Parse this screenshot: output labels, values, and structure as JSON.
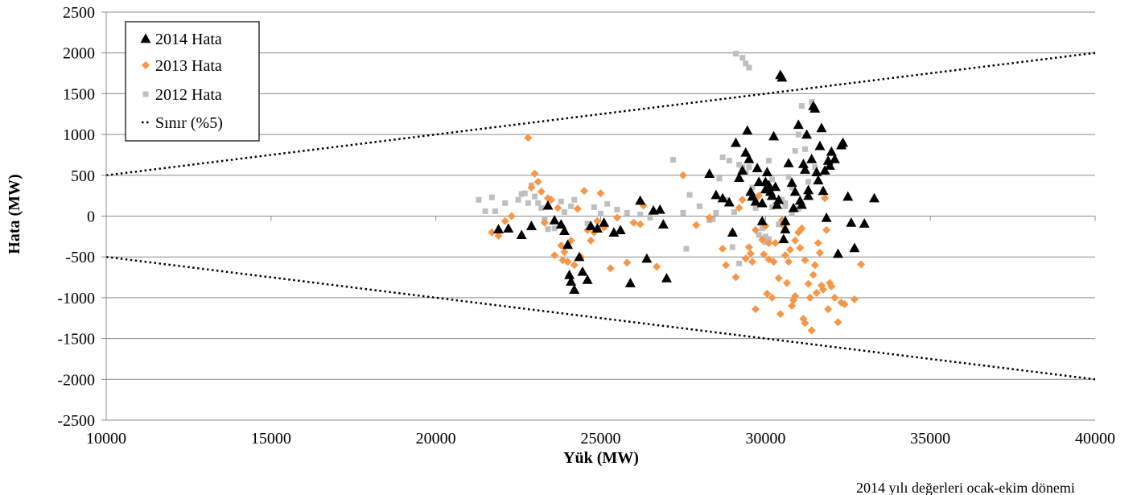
{
  "chart_data": {
    "type": "scatter",
    "title": "",
    "xlabel": "Yük (MW)",
    "ylabel": "Hata (MW)",
    "xlim": [
      10000,
      40000
    ],
    "ylim": [
      -2500,
      2500
    ],
    "x_ticks": [
      10000,
      15000,
      20000,
      25000,
      30000,
      35000,
      40000
    ],
    "y_ticks": [
      2500,
      2000,
      1500,
      1000,
      500,
      0,
      -500,
      -1000,
      -1500,
      -2000,
      -2500
    ],
    "grid": "horizontal",
    "legend_position": "top-left",
    "footnote": "2014 yılı değerleri ocak-ekim dönemi",
    "series": [
      {
        "name": "2014 Hata",
        "marker": "triangle",
        "color": "#000000",
        "points": [
          [
            21900,
            -160
          ],
          [
            22200,
            -150
          ],
          [
            22600,
            -230
          ],
          [
            22900,
            -120
          ],
          [
            23400,
            130
          ],
          [
            23600,
            -50
          ],
          [
            23800,
            -100
          ],
          [
            23900,
            -180
          ],
          [
            24000,
            -350
          ],
          [
            24050,
            -720
          ],
          [
            24100,
            -800
          ],
          [
            24200,
            -900
          ],
          [
            24350,
            -500
          ],
          [
            24450,
            -680
          ],
          [
            24600,
            -780
          ],
          [
            24700,
            -120
          ],
          [
            24900,
            -150
          ],
          [
            25100,
            -80
          ],
          [
            25400,
            -200
          ],
          [
            25600,
            -170
          ],
          [
            25900,
            -820
          ],
          [
            26200,
            190
          ],
          [
            26400,
            -520
          ],
          [
            26600,
            70
          ],
          [
            26800,
            80
          ],
          [
            26900,
            -100
          ],
          [
            27000,
            -760
          ],
          [
            28300,
            520
          ],
          [
            28500,
            260
          ],
          [
            28700,
            220
          ],
          [
            28900,
            170
          ],
          [
            29000,
            -200
          ],
          [
            29100,
            900
          ],
          [
            29200,
            470
          ],
          [
            29300,
            560
          ],
          [
            29400,
            780
          ],
          [
            29450,
            1050
          ],
          [
            29500,
            700
          ],
          [
            29550,
            300
          ],
          [
            29600,
            240
          ],
          [
            29700,
            180
          ],
          [
            29750,
            590
          ],
          [
            29800,
            420
          ],
          [
            29900,
            -60
          ],
          [
            30000,
            330
          ],
          [
            30050,
            540
          ],
          [
            30100,
            380
          ],
          [
            30150,
            300
          ],
          [
            30200,
            250
          ],
          [
            30250,
            980
          ],
          [
            30300,
            360
          ],
          [
            30350,
            140
          ],
          [
            30400,
            200
          ],
          [
            30450,
            1730
          ],
          [
            30500,
            1700
          ],
          [
            30550,
            -280
          ],
          [
            30600,
            -160
          ],
          [
            30700,
            650
          ],
          [
            30800,
            410
          ],
          [
            30850,
            100
          ],
          [
            30900,
            300
          ],
          [
            31000,
            1120
          ],
          [
            31050,
            190
          ],
          [
            31100,
            140
          ],
          [
            31150,
            640
          ],
          [
            31200,
            570
          ],
          [
            31250,
            1000
          ],
          [
            31300,
            320
          ],
          [
            31400,
            700
          ],
          [
            31450,
            1350
          ],
          [
            31500,
            1320
          ],
          [
            31550,
            540
          ],
          [
            31600,
            440
          ],
          [
            31650,
            860
          ],
          [
            31700,
            1080
          ],
          [
            31750,
            310
          ],
          [
            31800,
            560
          ],
          [
            31850,
            -20
          ],
          [
            31900,
            680
          ],
          [
            31950,
            620
          ],
          [
            32000,
            790
          ],
          [
            32100,
            700
          ],
          [
            32200,
            -460
          ],
          [
            32300,
            870
          ],
          [
            32350,
            900
          ],
          [
            32500,
            240
          ],
          [
            32600,
            -80
          ],
          [
            32700,
            -390
          ],
          [
            33000,
            -90
          ],
          [
            33300,
            220
          ],
          [
            30000,
            420
          ],
          [
            29900,
            160
          ],
          [
            30600,
            -60
          ],
          [
            31300,
            250
          ]
        ]
      },
      {
        "name": "2013 Hata",
        "marker": "diamond",
        "color": "#f79646",
        "points": [
          [
            21700,
            -200
          ],
          [
            21900,
            -240
          ],
          [
            22100,
            -60
          ],
          [
            22300,
            0
          ],
          [
            22800,
            960
          ],
          [
            22900,
            350
          ],
          [
            23000,
            520
          ],
          [
            23100,
            420
          ],
          [
            23200,
            300
          ],
          [
            23300,
            -80
          ],
          [
            23400,
            220
          ],
          [
            23500,
            200
          ],
          [
            23600,
            -480
          ],
          [
            23700,
            100
          ],
          [
            23800,
            -360
          ],
          [
            23850,
            -540
          ],
          [
            23900,
            -440
          ],
          [
            24000,
            -560
          ],
          [
            24100,
            -300
          ],
          [
            24200,
            -600
          ],
          [
            24300,
            90
          ],
          [
            24400,
            -500
          ],
          [
            24500,
            310
          ],
          [
            24600,
            -170
          ],
          [
            24700,
            -300
          ],
          [
            24800,
            -200
          ],
          [
            24900,
            -60
          ],
          [
            25000,
            280
          ],
          [
            25100,
            -140
          ],
          [
            25300,
            -640
          ],
          [
            25500,
            -20
          ],
          [
            25800,
            -570
          ],
          [
            26000,
            -80
          ],
          [
            26200,
            -100
          ],
          [
            26300,
            130
          ],
          [
            26700,
            -620
          ],
          [
            27500,
            500
          ],
          [
            27900,
            -110
          ],
          [
            28300,
            -20
          ],
          [
            28700,
            -400
          ],
          [
            28800,
            -600
          ],
          [
            29000,
            -200
          ],
          [
            29100,
            -750
          ],
          [
            29200,
            100
          ],
          [
            29300,
            200
          ],
          [
            29400,
            -520
          ],
          [
            29500,
            -380
          ],
          [
            29550,
            -460
          ],
          [
            29600,
            -560
          ],
          [
            29700,
            -1140
          ],
          [
            29800,
            250
          ],
          [
            29900,
            -290
          ],
          [
            29950,
            -470
          ],
          [
            30000,
            -120
          ],
          [
            30050,
            -950
          ],
          [
            30100,
            -530
          ],
          [
            30200,
            -1000
          ],
          [
            30250,
            -560
          ],
          [
            30300,
            -330
          ],
          [
            30400,
            -760
          ],
          [
            30450,
            -1200
          ],
          [
            30500,
            -50
          ],
          [
            30550,
            -120
          ],
          [
            30600,
            -480
          ],
          [
            30650,
            -820
          ],
          [
            30700,
            -560
          ],
          [
            30750,
            -410
          ],
          [
            30800,
            -1100
          ],
          [
            30850,
            -1030
          ],
          [
            30900,
            -980
          ],
          [
            31000,
            -200
          ],
          [
            31050,
            -390
          ],
          [
            31100,
            -150
          ],
          [
            31150,
            -1260
          ],
          [
            31200,
            -1310
          ],
          [
            31300,
            -830
          ],
          [
            31350,
            -1000
          ],
          [
            31400,
            -1400
          ],
          [
            31450,
            -720
          ],
          [
            31500,
            -600
          ],
          [
            31550,
            -940
          ],
          [
            31600,
            -330
          ],
          [
            31650,
            -450
          ],
          [
            31700,
            -850
          ],
          [
            31750,
            -900
          ],
          [
            31800,
            220
          ],
          [
            31850,
            -170
          ],
          [
            31900,
            -1140
          ],
          [
            31950,
            -820
          ],
          [
            32000,
            -860
          ],
          [
            32100,
            -1000
          ],
          [
            32200,
            -1300
          ],
          [
            32300,
            -1060
          ],
          [
            32400,
            -1080
          ],
          [
            32700,
            -1020
          ],
          [
            32900,
            -590
          ],
          [
            30100,
            -330
          ],
          [
            29700,
            -170
          ],
          [
            30900,
            -300
          ],
          [
            31200,
            -540
          ]
        ]
      },
      {
        "name": "2012 Hata",
        "marker": "square",
        "color": "#bfbfbf",
        "points": [
          [
            21300,
            200
          ],
          [
            21500,
            60
          ],
          [
            21700,
            230
          ],
          [
            21800,
            60
          ],
          [
            22100,
            160
          ],
          [
            22500,
            200
          ],
          [
            22600,
            270
          ],
          [
            22700,
            280
          ],
          [
            22800,
            160
          ],
          [
            22900,
            380
          ],
          [
            23000,
            240
          ],
          [
            23100,
            160
          ],
          [
            23200,
            100
          ],
          [
            23300,
            -30
          ],
          [
            23400,
            -160
          ],
          [
            23600,
            -150
          ],
          [
            23800,
            180
          ],
          [
            23900,
            50
          ],
          [
            24100,
            120
          ],
          [
            24200,
            200
          ],
          [
            24600,
            -90
          ],
          [
            24800,
            110
          ],
          [
            25000,
            30
          ],
          [
            25200,
            150
          ],
          [
            25500,
            80
          ],
          [
            25800,
            40
          ],
          [
            26200,
            20
          ],
          [
            26500,
            -20
          ],
          [
            27200,
            690
          ],
          [
            27500,
            40
          ],
          [
            27600,
            -400
          ],
          [
            27700,
            260
          ],
          [
            28000,
            120
          ],
          [
            28300,
            -50
          ],
          [
            28600,
            460
          ],
          [
            28700,
            720
          ],
          [
            28800,
            200
          ],
          [
            28900,
            680
          ],
          [
            29000,
            -380
          ],
          [
            29050,
            50
          ],
          [
            29100,
            1990
          ],
          [
            29200,
            -580
          ],
          [
            29300,
            1940
          ],
          [
            29400,
            1870
          ],
          [
            29500,
            1820
          ],
          [
            29600,
            350
          ],
          [
            29700,
            200
          ],
          [
            29800,
            -230
          ],
          [
            29900,
            -150
          ],
          [
            30000,
            -320
          ],
          [
            30100,
            680
          ],
          [
            30200,
            450
          ],
          [
            30300,
            140
          ],
          [
            30400,
            -100
          ],
          [
            30500,
            200
          ],
          [
            30600,
            160
          ],
          [
            30700,
            480
          ],
          [
            30800,
            350
          ],
          [
            30900,
            800
          ],
          [
            31000,
            1000
          ],
          [
            31100,
            1350
          ],
          [
            31200,
            820
          ],
          [
            31300,
            420
          ],
          [
            31400,
            1400
          ],
          [
            31500,
            600
          ],
          [
            29200,
            630
          ],
          [
            29300,
            600
          ],
          [
            29400,
            530
          ],
          [
            29500,
            600
          ],
          [
            29700,
            100
          ],
          [
            28500,
            40
          ],
          [
            28400,
            -40
          ],
          [
            30200,
            110
          ],
          [
            30600,
            120
          ],
          [
            30800,
            30
          ],
          [
            31000,
            90
          ],
          [
            30000,
            -250
          ],
          [
            30100,
            -280
          ]
        ]
      },
      {
        "name": "Sınır (%5)",
        "marker": "dotted-line",
        "color": "#000000",
        "lines": [
          [
            [
              10000,
              500
            ],
            [
              40000,
              2000
            ]
          ],
          [
            [
              10000,
              -500
            ],
            [
              40000,
              -2000
            ]
          ]
        ]
      }
    ]
  }
}
